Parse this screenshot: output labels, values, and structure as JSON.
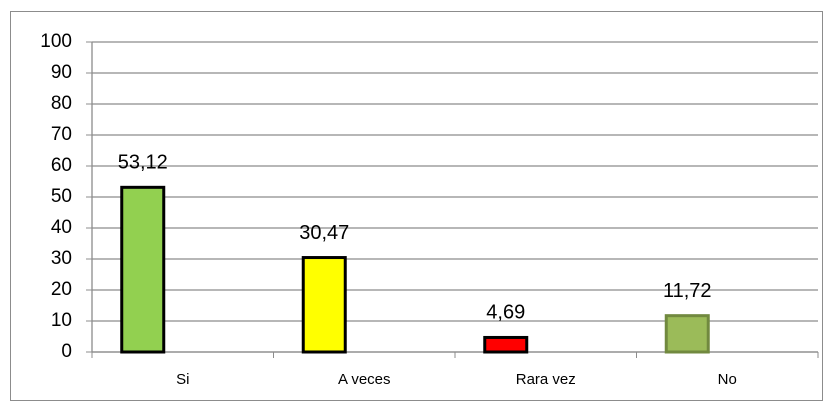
{
  "chart_data": {
    "type": "bar",
    "categories": [
      "Si",
      "A veces",
      "Rara vez",
      "No"
    ],
    "values": [
      53.12,
      30.47,
      4.69,
      11.72
    ],
    "value_labels": [
      "53,12",
      "30,47",
      "4,69",
      "11,72"
    ],
    "colors": [
      "#92d050",
      "#ffff00",
      "#ff0000",
      "#9bbb59"
    ],
    "edgecolors": [
      "#000000",
      "#000000",
      "#000000",
      "#71893f"
    ],
    "ylim": [
      0,
      100
    ],
    "yticks": [
      0,
      10,
      20,
      30,
      40,
      50,
      60,
      70,
      80,
      90,
      100
    ],
    "grid": true
  }
}
